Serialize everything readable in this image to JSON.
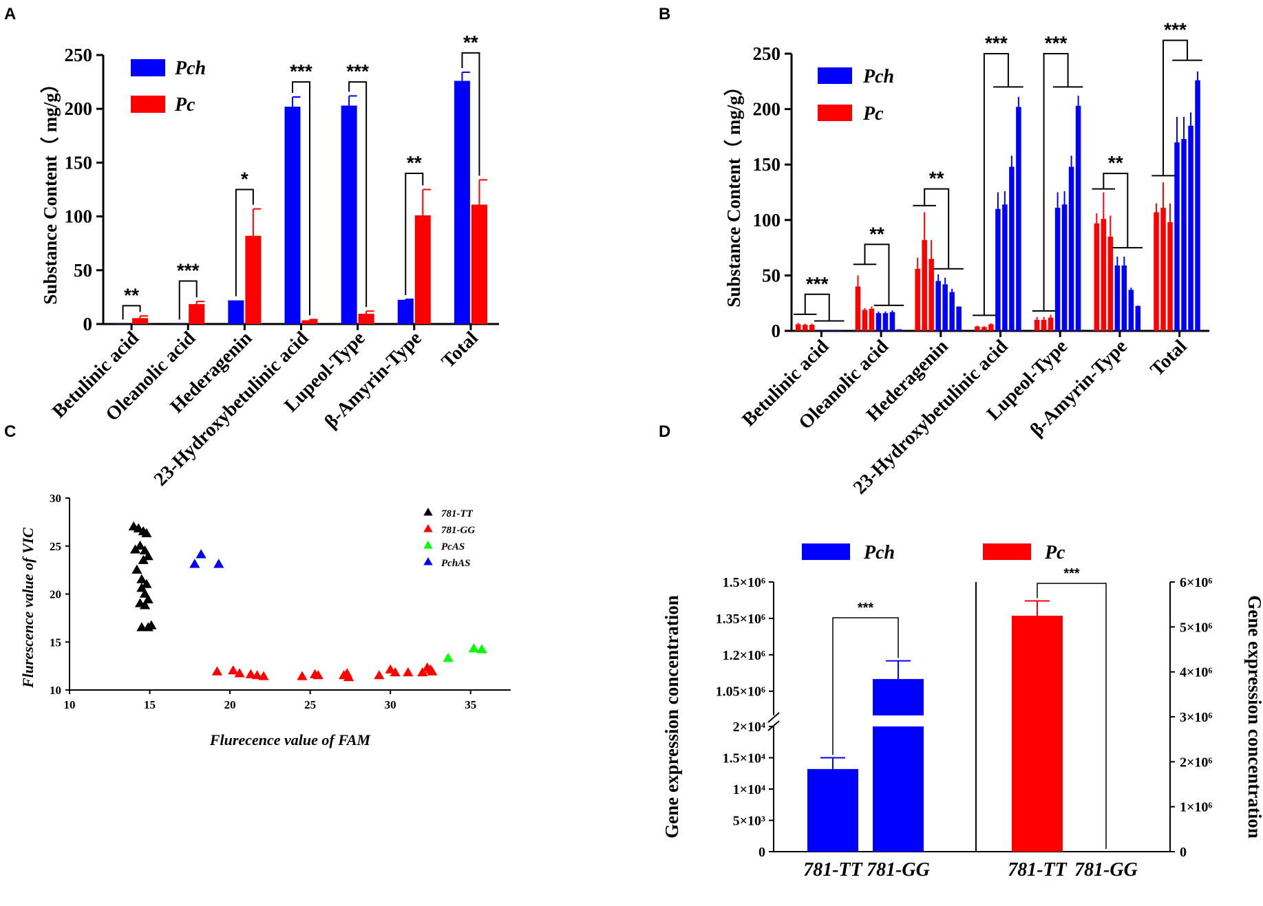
{
  "chart_data": [
    {
      "panel": "A",
      "type": "bar",
      "ylabel": "Substance Content（ mg/g）",
      "ylim": [
        0,
        250
      ],
      "yticks": [
        0,
        50,
        100,
        150,
        200,
        250
      ],
      "categories": [
        "Betulinic acid",
        "Oleanolic acid",
        "Hederagenin",
        "23-Hydroxybetulinic acid",
        "Lupeol-Type",
        "β-Amyrin-Type",
        "Total"
      ],
      "series": [
        {
          "name": "Pch",
          "color": "#0000ff",
          "values": [
            0.3,
            0.3,
            22,
            202,
            203,
            22.5,
            226
          ],
          "errors": [
            0,
            0,
            0,
            9,
            9,
            0.5,
            8
          ]
        },
        {
          "name": "Pc",
          "color": "#ff0000",
          "values": [
            5.5,
            18.5,
            82,
            3.5,
            9.5,
            101,
            111
          ],
          "errors": [
            2,
            2.5,
            25,
            0.7,
            2.5,
            24,
            23
          ]
        }
      ],
      "significance": [
        {
          "category": 0,
          "label": "**",
          "bracket_y": 17
        },
        {
          "category": 1,
          "label": "***",
          "bracket_y": 40
        },
        {
          "category": 2,
          "label": "*",
          "bracket_y": 125
        },
        {
          "category": 3,
          "label": "***",
          "bracket_y": 225
        },
        {
          "category": 4,
          "label": "***",
          "bracket_y": 225
        },
        {
          "category": 5,
          "label": "**",
          "bracket_y": 140
        },
        {
          "category": 6,
          "label": "**",
          "bracket_y": 252
        }
      ]
    },
    {
      "panel": "B",
      "type": "bar",
      "ylabel": "Substance Content（ mg/g）",
      "ylim": [
        0,
        250
      ],
      "yticks": [
        0,
        50,
        100,
        150,
        200,
        250
      ],
      "categories": [
        "Betulinic acid",
        "Oleanolic acid",
        "Hederagenin",
        "23-Hydroxybetulinic acid",
        "Lupeol-Type",
        "β-Amyrin-Type",
        "Total"
      ],
      "groups": [
        {
          "pc": [
            6,
            5.5,
            5.5
          ],
          "pc_err": [
            1.2,
            1,
            1
          ],
          "pch": [
            0.4,
            0.4,
            0.4,
            0.4
          ],
          "pch_err": [
            0,
            0,
            0,
            0
          ],
          "sig": "***",
          "pc_line": 15,
          "pch_line": 9,
          "top": 33
        },
        {
          "pc": [
            40,
            19,
            20
          ],
          "pc_err": [
            10,
            1.5,
            2
          ],
          "pch": [
            16,
            16,
            17,
            1.5
          ],
          "pch_err": [
            1.5,
            1.5,
            1.5,
            0
          ],
          "sig": "**",
          "pc_line": 60,
          "pch_line": 23,
          "top": 78
        },
        {
          "pc": [
            56,
            82,
            65
          ],
          "pc_err": [
            10,
            25,
            17
          ],
          "pch": [
            45,
            42,
            35,
            22
          ],
          "pch_err": [
            6,
            6,
            3,
            0
          ],
          "sig": "**",
          "pc_line": 113,
          "pch_line": 56,
          "top": 128
        },
        {
          "pc": [
            4,
            3.5,
            6
          ],
          "pc_err": [
            0.7,
            0.7,
            0.8
          ],
          "pch": [
            110,
            114,
            148,
            202
          ],
          "pch_err": [
            15,
            12,
            10,
            9
          ],
          "sig": "***",
          "pc_line": 14,
          "pch_line": 220,
          "top": 250
        },
        {
          "pc": [
            10,
            10,
            12
          ],
          "pc_err": [
            2.5,
            2.5,
            2.5
          ],
          "pch": [
            111,
            114,
            148,
            203
          ],
          "pch_err": [
            14,
            12,
            10,
            9
          ],
          "sig": "***",
          "pc_line": 18,
          "pch_line": 220,
          "top": 250
        },
        {
          "pc": [
            97,
            101,
            85
          ],
          "pc_err": [
            9,
            24,
            19
          ],
          "pch": [
            59,
            59,
            37,
            22.5
          ],
          "pch_err": [
            8,
            8,
            2,
            0.5
          ],
          "sig": "**",
          "pc_line": 128,
          "pch_line": 75,
          "top": 142
        },
        {
          "pc": [
            107,
            111,
            98
          ],
          "pc_err": [
            8,
            23,
            17
          ],
          "pch": [
            170,
            173,
            185,
            226
          ],
          "pch_err": [
            23,
            20,
            12,
            8
          ],
          "sig": "***",
          "pc_line": 140,
          "pch_line": 244,
          "top": 262
        }
      ],
      "legend": [
        {
          "name": "Pch",
          "color": "#0000ff"
        },
        {
          "name": "Pc",
          "color": "#ff0000"
        }
      ]
    },
    {
      "panel": "C",
      "type": "scatter",
      "xlabel": "Flurecence value of FAM",
      "ylabel": "Flurescence value of VIC",
      "xlim": [
        10,
        37.5
      ],
      "ylim": [
        10,
        30
      ],
      "xticks": [
        10,
        15,
        20,
        25,
        30,
        35
      ],
      "yticks": [
        10,
        15,
        20,
        25,
        30
      ],
      "series": [
        {
          "name": "781-TT",
          "color": "#000000",
          "points": [
            [
              14.0,
              27.0
            ],
            [
              14.3,
              26.8
            ],
            [
              14.6,
              26.5
            ],
            [
              14.8,
              26.3
            ],
            [
              14.1,
              24.6
            ],
            [
              14.4,
              25.0
            ],
            [
              14.7,
              24.5
            ],
            [
              14.9,
              23.9
            ],
            [
              14.6,
              23.5
            ],
            [
              14.2,
              22.5
            ],
            [
              14.5,
              21.5
            ],
            [
              14.8,
              21.0
            ],
            [
              14.5,
              20.6
            ],
            [
              14.7,
              20.0
            ],
            [
              14.9,
              19.4
            ],
            [
              14.4,
              19.0
            ],
            [
              14.7,
              18.8
            ],
            [
              14.5,
              16.5
            ],
            [
              14.9,
              16.5
            ],
            [
              15.1,
              16.7
            ]
          ]
        },
        {
          "name": "781-GG",
          "color": "#ff0000",
          "points": [
            [
              19.2,
              11.9
            ],
            [
              20.2,
              12.0
            ],
            [
              20.6,
              11.7
            ],
            [
              21.3,
              11.6
            ],
            [
              21.7,
              11.5
            ],
            [
              22.1,
              11.4
            ],
            [
              24.5,
              11.4
            ],
            [
              25.3,
              11.6
            ],
            [
              25.5,
              11.5
            ],
            [
              27.1,
              11.5
            ],
            [
              27.3,
              11.7
            ],
            [
              27.4,
              11.3
            ],
            [
              29.3,
              11.5
            ],
            [
              30.0,
              12.1
            ],
            [
              30.3,
              11.8
            ],
            [
              31.1,
              11.8
            ],
            [
              32.0,
              11.8
            ],
            [
              32.3,
              12.3
            ],
            [
              32.5,
              12.1
            ],
            [
              32.6,
              11.9
            ]
          ]
        },
        {
          "name": "PcAS",
          "color": "#00ff00",
          "points": [
            [
              33.6,
              13.3
            ],
            [
              35.2,
              14.3
            ],
            [
              35.7,
              14.2
            ]
          ]
        },
        {
          "name": "PchAS",
          "color": "#0000ff",
          "points": [
            [
              17.8,
              23.1
            ],
            [
              18.2,
              24.1
            ],
            [
              19.3,
              23.1
            ]
          ]
        }
      ]
    },
    {
      "panel": "D",
      "type": "bar",
      "ylabel_left": "Gene expression concentration",
      "ylabel_right": "Gene expression concentration",
      "legend": [
        {
          "name": "Pch",
          "color": "#0000ff"
        },
        {
          "name": "Pc",
          "color": "#ff0000"
        }
      ],
      "left_axis": {
        "lower_range": [
          0,
          20000
        ],
        "upper_range": [
          950000,
          1500000
        ],
        "lower_ticks": [
          "0",
          "5×10³",
          "1×10⁴",
          "1.5×10⁴",
          "2×10⁴"
        ],
        "upper_ticks": [
          "1.05×10⁶",
          "1.2×10⁶",
          "1.35×10⁶",
          "1.5×10⁶"
        ]
      },
      "right_axis": {
        "range": [
          0,
          6000000
        ],
        "ticks": [
          "0",
          "1×10⁶",
          "2×10⁶",
          "3×10⁶",
          "4×10⁶",
          "5×10⁶",
          "6×10⁶"
        ]
      },
      "groups": [
        {
          "species": "Pch",
          "axis": "left",
          "categories": [
            "781-TT",
            "781-GG"
          ],
          "values": [
            13200,
            1100000
          ],
          "errors": [
            1800,
            75000
          ],
          "sig": "***"
        },
        {
          "species": "Pc",
          "axis": "right",
          "categories": [
            "781-TT",
            "781-GG"
          ],
          "values": [
            5250000,
            0
          ],
          "errors": [
            330000,
            0
          ],
          "sig": "***"
        }
      ]
    }
  ],
  "panel_labels": [
    "A",
    "B",
    "C",
    "D"
  ]
}
